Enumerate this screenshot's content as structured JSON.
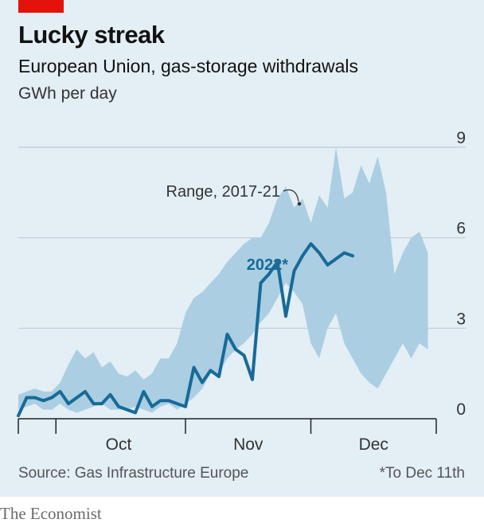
{
  "header": {
    "title": "Lucky streak",
    "subtitle": "European Union, gas-storage withdrawals",
    "unit": "GWh per day"
  },
  "footer": {
    "source": "Source: Gas Infrastructure Europe",
    "footnote": "*To Dec 11th",
    "brand": "The Economist"
  },
  "colors": {
    "panel": "#e3eef5",
    "range_fill": "#abcee2",
    "line_2022": "#176a98",
    "brand_red": "#e3120b",
    "grid": "#bfcbd3"
  },
  "chart_data": {
    "type": "area",
    "ylim": [
      0,
      9
    ],
    "y_ticks": [
      0,
      3,
      6,
      9
    ],
    "y_tick_labels": [
      "0",
      "3",
      "6",
      "9"
    ],
    "x_range": [
      "Sep 22",
      "Dec 31"
    ],
    "x_month_labels": [
      "Oct",
      "Nov",
      "Dec"
    ],
    "grid": true,
    "annotations": [
      "Range, 2017-21",
      "2022*"
    ],
    "series": [
      {
        "name": "Range, 2017-21",
        "kind": "band",
        "x": [
          "Sep 22",
          "Sep 24",
          "Sep 26",
          "Sep 28",
          "Sep 30",
          "Oct 2",
          "Oct 4",
          "Oct 6",
          "Oct 8",
          "Oct 10",
          "Oct 12",
          "Oct 14",
          "Oct 16",
          "Oct 18",
          "Oct 20",
          "Oct 22",
          "Oct 24",
          "Oct 26",
          "Oct 28",
          "Oct 30",
          "Nov 1",
          "Nov 3",
          "Nov 5",
          "Nov 7",
          "Nov 9",
          "Nov 11",
          "Nov 13",
          "Nov 15",
          "Nov 17",
          "Nov 19",
          "Nov 21",
          "Nov 23",
          "Nov 25",
          "Nov 27",
          "Nov 29",
          "Dec 1",
          "Dec 3",
          "Dec 5",
          "Dec 7",
          "Dec 9",
          "Dec 11",
          "Dec 13",
          "Dec 15",
          "Dec 17",
          "Dec 19",
          "Dec 21",
          "Dec 23",
          "Dec 25",
          "Dec 27",
          "Dec 29"
        ],
        "low": [
          0.3,
          0.4,
          0.5,
          0.3,
          0.3,
          0.5,
          0.3,
          0.2,
          0.3,
          0.4,
          0.5,
          0.3,
          0.3,
          0.3,
          0.4,
          0.3,
          0.2,
          0.4,
          0.5,
          0.3,
          0.5,
          0.7,
          1.0,
          1.5,
          1.5,
          2.0,
          2.3,
          2.5,
          2.8,
          3.2,
          3.5,
          4.0,
          4.5,
          4.2,
          3.8,
          2.5,
          2.0,
          3.0,
          3.5,
          2.5,
          2.0,
          1.5,
          1.2,
          1.0,
          1.5,
          2.0,
          2.5,
          2.0,
          2.5,
          2.3
        ],
        "high": [
          0.8,
          0.9,
          1.0,
          0.9,
          0.9,
          1.2,
          1.8,
          2.3,
          2.0,
          2.2,
          1.7,
          1.9,
          1.5,
          1.4,
          1.6,
          1.3,
          1.5,
          2.0,
          2.0,
          2.5,
          3.5,
          4.0,
          4.2,
          4.5,
          4.8,
          5.2,
          5.5,
          5.8,
          6.0,
          6.0,
          6.5,
          7.3,
          7.7,
          7.0,
          7.3,
          6.5,
          7.4,
          7.0,
          9.0,
          7.3,
          7.5,
          8.4,
          7.8,
          8.7,
          7.5,
          4.8,
          5.5,
          6.0,
          6.2,
          5.5
        ]
      },
      {
        "name": "2022*",
        "kind": "line",
        "x": [
          "Sep 22",
          "Sep 24",
          "Sep 26",
          "Sep 28",
          "Sep 30",
          "Oct 2",
          "Oct 4",
          "Oct 6",
          "Oct 8",
          "Oct 10",
          "Oct 12",
          "Oct 14",
          "Oct 16",
          "Oct 18",
          "Oct 20",
          "Oct 22",
          "Oct 24",
          "Oct 26",
          "Oct 28",
          "Oct 30",
          "Nov 1",
          "Nov 3",
          "Nov 5",
          "Nov 7",
          "Nov 9",
          "Nov 11",
          "Nov 13",
          "Nov 15",
          "Nov 17",
          "Nov 19",
          "Nov 21",
          "Nov 23",
          "Nov 25",
          "Nov 27",
          "Nov 29",
          "Dec 1",
          "Dec 3",
          "Dec 5",
          "Dec 7",
          "Dec 9",
          "Dec 11"
        ],
        "values": [
          0.1,
          0.7,
          0.7,
          0.6,
          0.7,
          0.9,
          0.5,
          0.7,
          0.9,
          0.5,
          0.5,
          0.8,
          0.4,
          0.3,
          0.2,
          0.9,
          0.4,
          0.6,
          0.6,
          0.5,
          0.4,
          1.7,
          1.2,
          1.6,
          1.4,
          2.8,
          2.3,
          2.1,
          1.3,
          4.5,
          4.8,
          5.2,
          3.4,
          4.9,
          5.4,
          5.8,
          5.5,
          5.1,
          5.3,
          5.5,
          5.4
        ]
      }
    ]
  }
}
